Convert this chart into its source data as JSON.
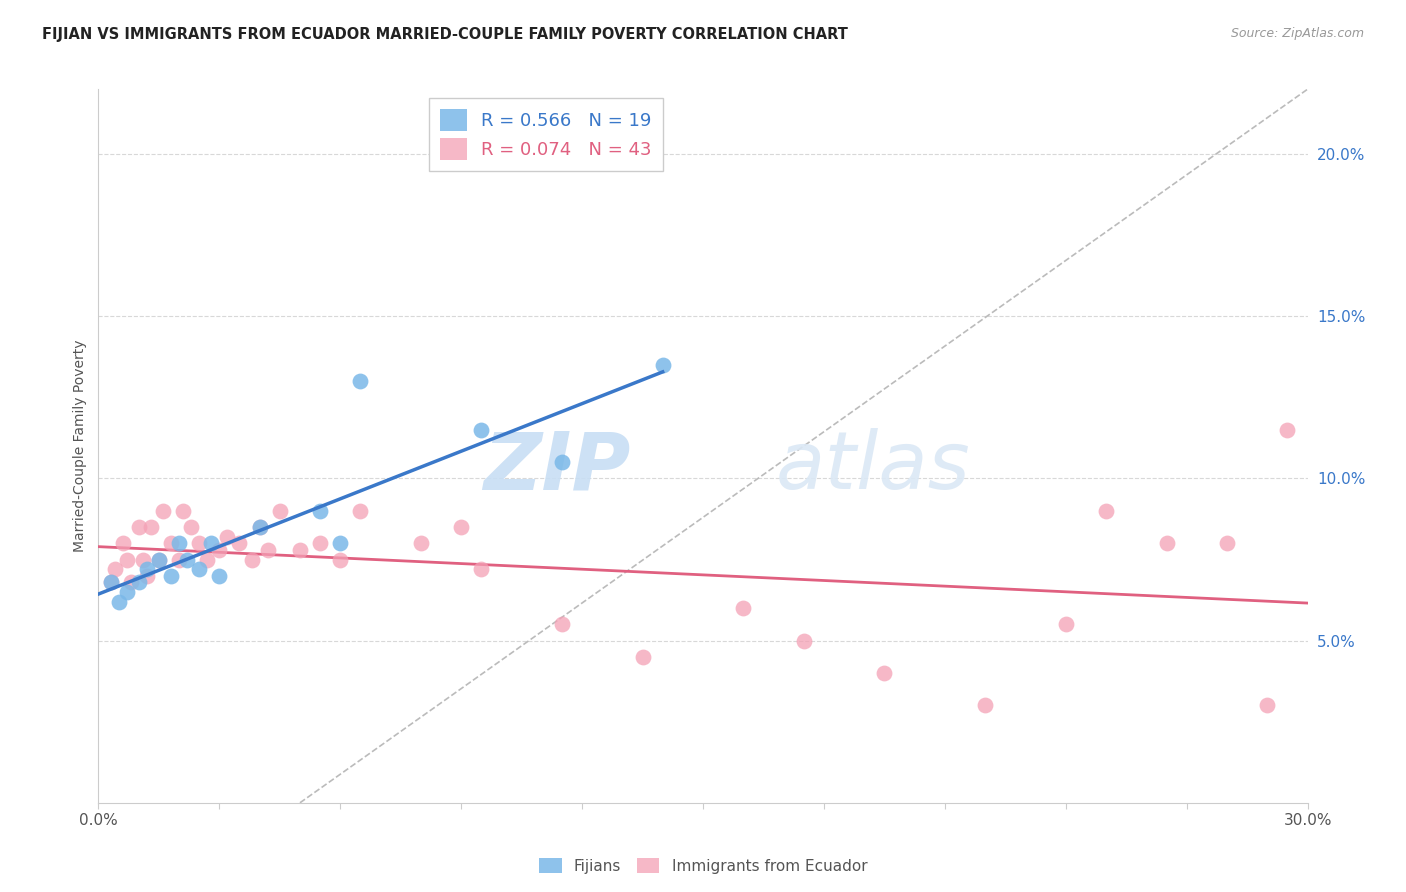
{
  "title": "FIJIAN VS IMMIGRANTS FROM ECUADOR MARRIED-COUPLE FAMILY POVERTY CORRELATION CHART",
  "source": "Source: ZipAtlas.com",
  "ylabel": "Married-Couple Family Poverty",
  "xlim": [
    0,
    0.3
  ],
  "ylim": [
    0,
    0.22
  ],
  "yticks_right": [
    0.05,
    0.1,
    0.15,
    0.2
  ],
  "ytick_labels_right": [
    "5.0%",
    "10.0%",
    "15.0%",
    "20.0%"
  ],
  "fijian_color": "#7ab8e8",
  "ecuador_color": "#f4a0b5",
  "fijian_R": 0.566,
  "fijian_N": 19,
  "ecuador_R": 0.074,
  "ecuador_N": 43,
  "fijian_x": [
    0.003,
    0.005,
    0.007,
    0.01,
    0.012,
    0.015,
    0.018,
    0.02,
    0.022,
    0.025,
    0.028,
    0.03,
    0.04,
    0.055,
    0.06,
    0.065,
    0.095,
    0.115,
    0.14
  ],
  "fijian_y": [
    0.068,
    0.062,
    0.065,
    0.068,
    0.072,
    0.075,
    0.07,
    0.08,
    0.075,
    0.072,
    0.08,
    0.07,
    0.085,
    0.09,
    0.08,
    0.13,
    0.115,
    0.105,
    0.135
  ],
  "ecuador_x": [
    0.003,
    0.004,
    0.006,
    0.007,
    0.008,
    0.01,
    0.011,
    0.012,
    0.013,
    0.015,
    0.016,
    0.018,
    0.02,
    0.021,
    0.023,
    0.025,
    0.027,
    0.03,
    0.032,
    0.035,
    0.038,
    0.04,
    0.042,
    0.045,
    0.05,
    0.055,
    0.06,
    0.065,
    0.08,
    0.09,
    0.095,
    0.115,
    0.135,
    0.16,
    0.175,
    0.195,
    0.22,
    0.24,
    0.25,
    0.265,
    0.28,
    0.29,
    0.295
  ],
  "ecuador_y": [
    0.068,
    0.072,
    0.08,
    0.075,
    0.068,
    0.085,
    0.075,
    0.07,
    0.085,
    0.075,
    0.09,
    0.08,
    0.075,
    0.09,
    0.085,
    0.08,
    0.075,
    0.078,
    0.082,
    0.08,
    0.075,
    0.085,
    0.078,
    0.09,
    0.078,
    0.08,
    0.075,
    0.09,
    0.08,
    0.085,
    0.072,
    0.055,
    0.045,
    0.06,
    0.05,
    0.04,
    0.03,
    0.055,
    0.09,
    0.08,
    0.08,
    0.03,
    0.115
  ],
  "watermark_zip": "ZIP",
  "watermark_atlas": "atlas",
  "background_color": "#ffffff",
  "grid_color": "#d8d8d8",
  "trend_blue": "#3a78c9",
  "trend_pink": "#e06080",
  "ref_line_color": "#bbbbbb"
}
